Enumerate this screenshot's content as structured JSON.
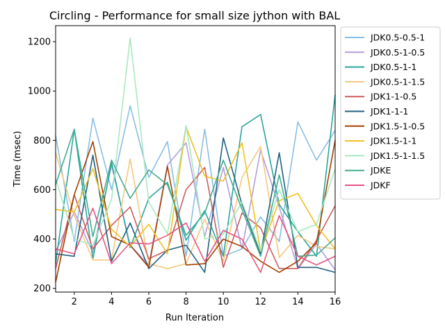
{
  "chart_data": {
    "type": "line",
    "title": "Circling - Performance for small size jython with BAL",
    "xlabel": "Run Iteration",
    "ylabel": "Time (msec)",
    "xlim": [
      1,
      16
    ],
    "ylim": [
      185,
      1265
    ],
    "xticks": [
      2,
      4,
      6,
      8,
      10,
      12,
      14,
      16
    ],
    "yticks": [
      200,
      400,
      600,
      800,
      1000,
      1200
    ],
    "grid": false,
    "legend_position": "outside-right",
    "x": [
      1,
      2,
      3,
      4,
      5,
      6,
      7,
      8,
      9,
      10,
      11,
      12,
      13,
      14,
      15,
      16
    ],
    "series": [
      {
        "name": "JDK0.5-0.5-1",
        "color": "#88bde6",
        "values": [
          820,
          390,
          890,
          600,
          940,
          650,
          795,
          330,
          845,
          330,
          360,
          490,
          390,
          875,
          720,
          840
        ]
      },
      {
        "name": "JDK0.5-1-0.5",
        "color": "#b39ddb",
        "values": [
          350,
          510,
          345,
          700,
          375,
          295,
          700,
          790,
          410,
          690,
          360,
          760,
          530,
          280,
          380,
          275
        ]
      },
      {
        "name": "JDK0.5-1-1",
        "color": "#26a69a",
        "values": [
          300,
          845,
          320,
          710,
          365,
          565,
          630,
          395,
          515,
          330,
          855,
          905,
          540,
          430,
          330,
          985
        ]
      },
      {
        "name": "JDK0.5-1-1.5",
        "color": "#f5c77e",
        "values": [
          750,
          495,
          315,
          315,
          725,
          300,
          280,
          300,
          480,
          310,
          650,
          775,
          325,
          415,
          370,
          360
        ]
      },
      {
        "name": "JDK1-1-0.5",
        "color": "#cd5c5c",
        "values": [
          280,
          580,
          360,
          455,
          530,
          320,
          355,
          600,
          690,
          285,
          505,
          445,
          280,
          280,
          395,
          535
        ]
      },
      {
        "name": "JDK1-1-1",
        "color": "#1f5f7f",
        "values": [
          340,
          330,
          740,
          310,
          465,
          280,
          355,
          375,
          265,
          810,
          540,
          340,
          750,
          285,
          285,
          265
        ]
      },
      {
        "name": "JDK1.5-1-0.5",
        "color": "#a33f00",
        "values": [
          225,
          580,
          795,
          410,
          375,
          285,
          695,
          295,
          300,
          400,
          370,
          310,
          265,
          310,
          385,
          800
        ]
      },
      {
        "name": "JDK1.5-1-1",
        "color": "#f0c020",
        "values": [
          520,
          510,
          685,
          440,
          370,
          460,
          340,
          855,
          655,
          635,
          790,
          350,
          555,
          585,
          455,
          360
        ]
      },
      {
        "name": "JDK1.5-1-1.5",
        "color": "#a8e8c0",
        "values": [
          645,
          400,
          375,
          560,
          1215,
          550,
          420,
          860,
          400,
          420,
          550,
          350,
          600,
          430,
          460,
          685
        ]
      },
      {
        "name": "JDKE",
        "color": "#3fad91",
        "values": [
          620,
          845,
          410,
          720,
          565,
          680,
          620,
          415,
          505,
          720,
          520,
          330,
          660,
          330,
          335,
          405
        ]
      },
      {
        "name": "JDKF",
        "color": "#e75480",
        "values": [
          360,
          340,
          525,
          300,
          385,
          380,
          415,
          465,
          310,
          435,
          400,
          265,
          495,
          330,
          295,
          330
        ]
      }
    ]
  }
}
